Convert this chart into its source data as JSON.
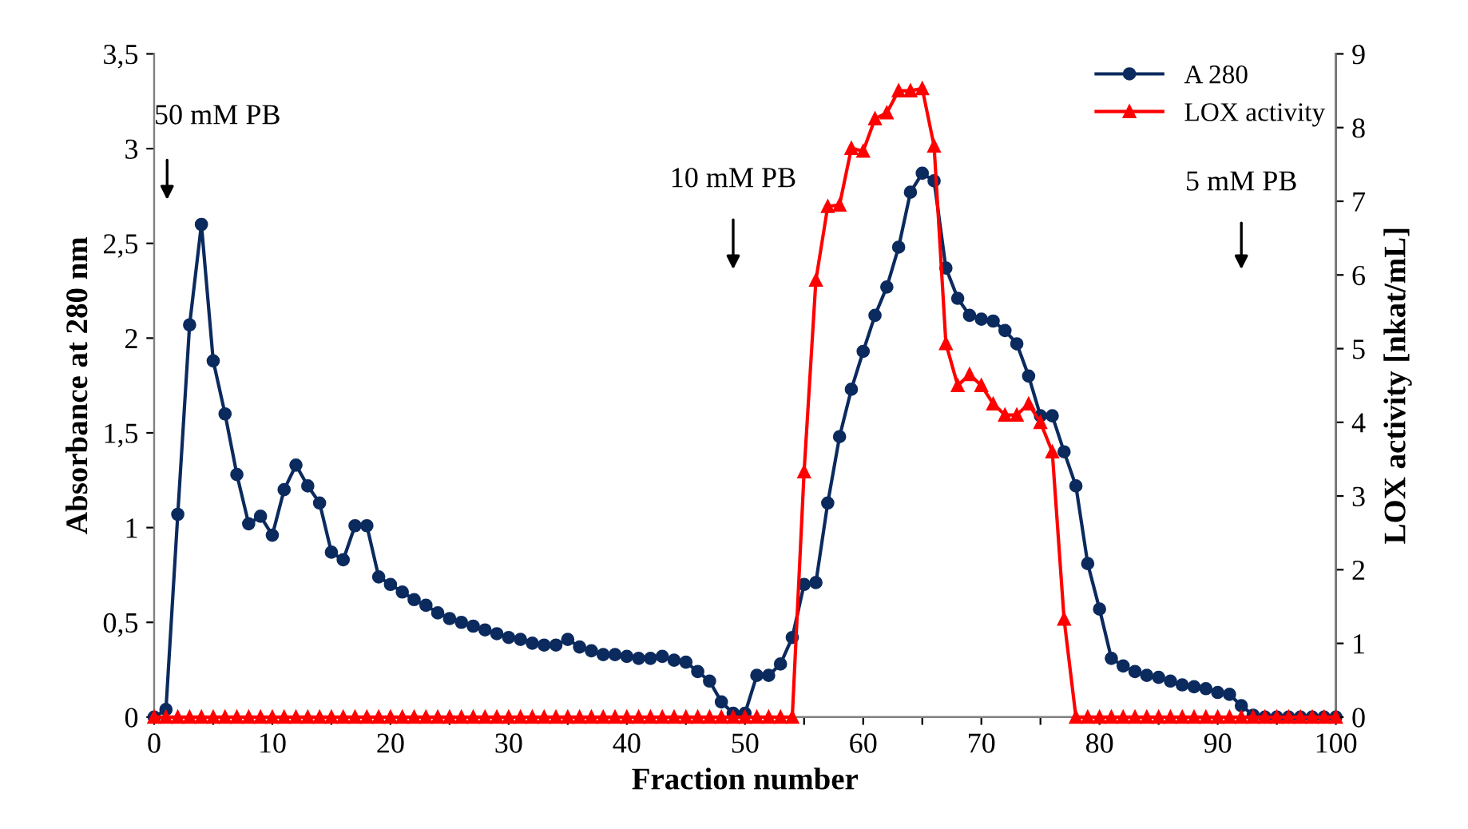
{
  "chart_data": {
    "type": "line",
    "xlabel": "Fraction number",
    "ylabel": "Absorbance at 280 nm",
    "y2label": "LOX activity [nkat/mL]",
    "xlim": [
      0,
      100
    ],
    "xticks": [
      0,
      {
        "value": 5,
        "label": null
      },
      10,
      {
        "value": 15,
        "label": null
      },
      20,
      {
        "value": 25,
        "label": null
      },
      30,
      {
        "value": 35,
        "label": null
      },
      40,
      {
        "value": 45,
        "label": null
      },
      50,
      {
        "value": 55,
        "label": null
      },
      60,
      {
        "value": 65,
        "label": null
      },
      70,
      {
        "value": 75,
        "label": null
      },
      80,
      {
        "value": 85,
        "label": null
      },
      90,
      {
        "value": 95,
        "label": null
      },
      100
    ],
    "ylim": [
      0,
      3.5
    ],
    "yticks": [
      0,
      {
        "value": 0.5,
        "label": "0,5"
      },
      1,
      {
        "value": 1.5,
        "label": "1,5"
      },
      2,
      {
        "value": 2.5,
        "label": "2,5"
      },
      3,
      {
        "value": 3.5,
        "label": "3,5"
      }
    ],
    "y2lim": [
      0,
      9
    ],
    "y2ticks": [
      0,
      1,
      2,
      3,
      4,
      5,
      6,
      7,
      8,
      9
    ],
    "grid": false,
    "legend": "top right",
    "line_style": "solid",
    "annotations": [
      "50 mM PB",
      "10 mM PB",
      "5 mM PB"
    ],
    "series": [
      {
        "name": "A 280",
        "color": "#0b2a5e",
        "marker": "circle",
        "x": [
          0,
          1,
          2,
          3,
          4,
          5,
          6,
          7,
          8,
          9,
          10,
          11,
          12,
          13,
          14,
          15,
          16,
          17,
          18,
          19,
          20,
          21,
          22,
          23,
          24,
          25,
          26,
          27,
          28,
          29,
          30,
          31,
          32,
          33,
          34,
          35,
          36,
          37,
          38,
          39,
          40,
          41,
          42,
          43,
          44,
          45,
          46,
          47,
          48,
          49,
          50,
          51,
          52,
          53,
          54,
          55,
          56,
          57,
          58,
          59,
          60,
          61,
          62,
          63,
          64,
          65,
          66,
          67,
          68,
          69,
          70,
          71,
          72,
          73,
          74,
          75,
          76,
          77,
          78,
          79,
          80,
          81,
          82,
          83,
          84,
          85,
          86,
          87,
          88,
          89,
          90,
          91,
          92,
          93,
          94,
          95,
          96,
          97,
          98,
          99,
          100
        ],
        "values": [
          0,
          0.04,
          1.07,
          2.07,
          2.6,
          1.88,
          1.6,
          1.28,
          1.02,
          1.06,
          0.96,
          1.2,
          1.33,
          1.22,
          1.13,
          0.87,
          0.83,
          1.01,
          1.01,
          0.74,
          0.7,
          0.66,
          0.62,
          0.59,
          0.55,
          0.52,
          0.5,
          0.48,
          0.46,
          0.44,
          0.42,
          0.41,
          0.39,
          0.38,
          0.38,
          0.41,
          0.37,
          0.35,
          0.33,
          0.33,
          0.32,
          0.31,
          0.31,
          0.32,
          0.3,
          0.29,
          0.24,
          0.19,
          0.08,
          0.02,
          0.02,
          0.22,
          0.22,
          0.28,
          0.42,
          0.7,
          0.71,
          1.13,
          1.48,
          1.73,
          1.93,
          2.12,
          2.27,
          2.48,
          2.77,
          2.87,
          2.83,
          2.37,
          2.21,
          2.12,
          2.1,
          2.09,
          2.04,
          1.97,
          1.8,
          1.59,
          1.59,
          1.4,
          1.22,
          0.81,
          0.57,
          0.31,
          0.27,
          0.24,
          0.22,
          0.21,
          0.19,
          0.17,
          0.16,
          0.15,
          0.13,
          0.12,
          0.06,
          0.01,
          0,
          0,
          0,
          0,
          0,
          0,
          0
        ]
      },
      {
        "name": "LOX activity",
        "color": "#ff0000",
        "marker": "triangle",
        "axis": "y2",
        "x": [
          0,
          1,
          2,
          3,
          4,
          5,
          6,
          7,
          8,
          9,
          10,
          11,
          12,
          13,
          14,
          15,
          16,
          17,
          18,
          19,
          20,
          21,
          22,
          23,
          24,
          25,
          26,
          27,
          28,
          29,
          30,
          31,
          32,
          33,
          34,
          35,
          36,
          37,
          38,
          39,
          40,
          41,
          42,
          43,
          44,
          45,
          46,
          47,
          48,
          49,
          50,
          51,
          52,
          53,
          54,
          55,
          56,
          57,
          58,
          59,
          60,
          61,
          62,
          63,
          64,
          65,
          66,
          67,
          68,
          69,
          70,
          71,
          72,
          73,
          74,
          75,
          76,
          77,
          78,
          79,
          80,
          81,
          82,
          83,
          84,
          85,
          86,
          87,
          88,
          89,
          90,
          91,
          92,
          93,
          94,
          95,
          96,
          97,
          98,
          99,
          100
        ],
        "values": [
          0,
          0,
          0,
          0,
          0,
          0,
          0,
          0,
          0,
          0,
          0,
          0,
          0,
          0,
          0,
          0,
          0,
          0,
          0,
          0,
          0,
          0,
          0,
          0,
          0,
          0,
          0,
          0,
          0,
          0,
          0,
          0,
          0,
          0,
          0,
          0,
          0,
          0,
          0,
          0,
          0,
          0,
          0,
          0,
          0,
          0,
          0,
          0,
          0,
          0,
          0,
          0,
          0,
          0,
          0,
          3.33,
          5.93,
          6.93,
          6.95,
          7.72,
          7.68,
          8.12,
          8.2,
          8.5,
          8.5,
          8.53,
          7.75,
          5.07,
          4.5,
          4.65,
          4.5,
          4.25,
          4.1,
          4.1,
          4.25,
          4.0,
          3.6,
          1.33,
          0,
          0,
          0,
          0,
          0,
          0,
          0,
          0,
          0,
          0,
          0,
          0,
          0,
          0,
          0,
          0,
          0,
          0,
          0,
          0,
          0,
          0,
          0
        ]
      }
    ]
  }
}
